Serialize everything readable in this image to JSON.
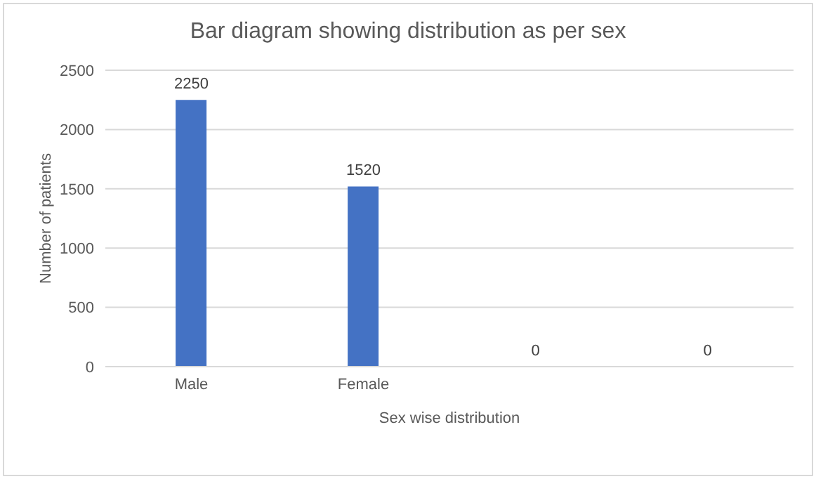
{
  "chart_data": {
    "type": "bar",
    "title": "Bar diagram showing distribution as per sex",
    "xlabel": "Sex wise distribution",
    "ylabel": "Number of patients",
    "categories": [
      "Male",
      "Female",
      null,
      null
    ],
    "values": [
      2250,
      1520,
      0,
      0
    ],
    "color": "#4472c4",
    "ylim": [
      0,
      2500
    ],
    "yticks": [
      0,
      500,
      1000,
      1500,
      2000,
      2500
    ],
    "grid": "y",
    "data_labels": true
  }
}
